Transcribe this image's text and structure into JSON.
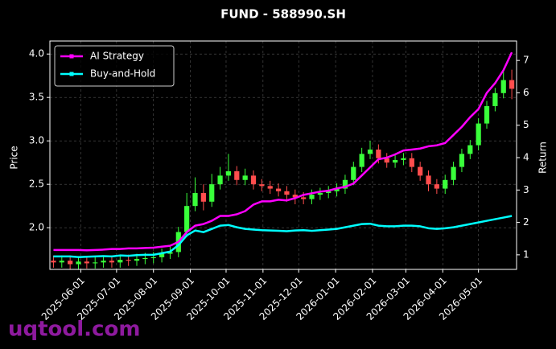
{
  "chart_data": {
    "type": "candlestick",
    "title": "FUND - 588990.SH",
    "ylabel": "Price",
    "y2label": "Return",
    "watermark": "uqtool.com",
    "grid": true,
    "legend": "upper left",
    "x": [
      "2025-05-09",
      "2025-05-16",
      "2025-05-23",
      "2025-05-30",
      "2025-06-06",
      "2025-06-13",
      "2025-06-20",
      "2025-06-27",
      "2025-07-04",
      "2025-07-11",
      "2025-07-18",
      "2025-07-25",
      "2025-08-01",
      "2025-08-08",
      "2025-08-15",
      "2025-08-22",
      "2025-08-29",
      "2025-09-05",
      "2025-09-12",
      "2025-09-19",
      "2025-09-26",
      "2025-10-03",
      "2025-10-10",
      "2025-10-17",
      "2025-10-24",
      "2025-10-31",
      "2025-11-07",
      "2025-11-14",
      "2025-11-21",
      "2025-11-28",
      "2025-12-05",
      "2025-12-12",
      "2025-12-19",
      "2025-12-26",
      "2026-01-02",
      "2026-01-09",
      "2026-01-16",
      "2026-01-23",
      "2026-01-30",
      "2026-02-06",
      "2026-02-13",
      "2026-02-20",
      "2026-02-27",
      "2026-03-06",
      "2026-03-13",
      "2026-03-20",
      "2026-03-27",
      "2026-04-03",
      "2026-04-10",
      "2026-04-17",
      "2026-04-24",
      "2026-05-01",
      "2026-05-08",
      "2026-05-15",
      "2026-05-22",
      "2026-05-29"
    ],
    "up_color": "#39ff3a",
    "down_color": "#ff4d4d",
    "open": [
      1.62,
      1.6,
      1.62,
      1.58,
      1.61,
      1.59,
      1.6,
      1.62,
      1.6,
      1.63,
      1.62,
      1.64,
      1.65,
      1.66,
      1.7,
      1.72,
      1.95,
      2.25,
      2.4,
      2.3,
      2.5,
      2.6,
      2.65,
      2.55,
      2.6,
      2.5,
      2.48,
      2.45,
      2.42,
      2.38,
      2.35,
      2.33,
      2.38,
      2.4,
      2.42,
      2.45,
      2.55,
      2.7,
      2.85,
      2.9,
      2.8,
      2.75,
      2.78,
      2.8,
      2.7,
      2.6,
      2.5,
      2.45,
      2.55,
      2.7,
      2.85,
      2.95,
      3.2,
      3.4,
      3.55,
      3.7
    ],
    "high": [
      1.68,
      1.68,
      1.68,
      1.67,
      1.67,
      1.66,
      1.68,
      1.68,
      1.69,
      1.69,
      1.7,
      1.71,
      1.72,
      1.76,
      1.78,
      2.01,
      2.4,
      2.58,
      2.5,
      2.62,
      2.7,
      2.85,
      2.71,
      2.68,
      2.66,
      2.56,
      2.54,
      2.51,
      2.48,
      2.44,
      2.41,
      2.44,
      2.46,
      2.48,
      2.51,
      2.61,
      2.76,
      2.92,
      3.0,
      2.96,
      2.86,
      2.84,
      2.86,
      2.86,
      2.76,
      2.66,
      2.56,
      2.61,
      2.76,
      2.91,
      3.01,
      3.26,
      3.46,
      3.61,
      3.8,
      3.82
    ],
    "low": [
      1.54,
      1.54,
      1.52,
      1.52,
      1.53,
      1.53,
      1.54,
      1.54,
      1.54,
      1.56,
      1.56,
      1.58,
      1.59,
      1.6,
      1.64,
      1.66,
      1.89,
      2.19,
      2.2,
      2.24,
      2.44,
      2.54,
      2.49,
      2.49,
      2.44,
      2.42,
      2.39,
      2.36,
      2.3,
      2.27,
      2.27,
      2.27,
      2.32,
      2.34,
      2.36,
      2.39,
      2.49,
      2.64,
      2.79,
      2.74,
      2.69,
      2.69,
      2.72,
      2.64,
      2.54,
      2.42,
      2.39,
      2.39,
      2.49,
      2.64,
      2.79,
      2.89,
      3.14,
      3.34,
      3.49,
      3.48
    ],
    "close": [
      1.6,
      1.62,
      1.58,
      1.61,
      1.59,
      1.6,
      1.62,
      1.6,
      1.63,
      1.62,
      1.64,
      1.65,
      1.66,
      1.7,
      1.72,
      1.95,
      2.25,
      2.4,
      2.3,
      2.5,
      2.6,
      2.65,
      2.55,
      2.6,
      2.5,
      2.48,
      2.45,
      2.42,
      2.38,
      2.35,
      2.33,
      2.38,
      2.4,
      2.42,
      2.45,
      2.55,
      2.7,
      2.85,
      2.9,
      2.8,
      2.75,
      2.78,
      2.8,
      2.7,
      2.6,
      2.5,
      2.45,
      2.55,
      2.7,
      2.85,
      2.95,
      3.2,
      3.4,
      3.55,
      3.7,
      3.6
    ],
    "series": [
      {
        "name": "AI Strategy",
        "color": "#ff00ff",
        "axis": "y2",
        "values": [
          1.15,
          1.15,
          1.15,
          1.15,
          1.14,
          1.15,
          1.16,
          1.18,
          1.18,
          1.2,
          1.2,
          1.21,
          1.22,
          1.25,
          1.28,
          1.4,
          1.7,
          1.9,
          1.95,
          2.05,
          2.2,
          2.2,
          2.25,
          2.35,
          2.55,
          2.65,
          2.65,
          2.7,
          2.68,
          2.75,
          2.85,
          2.9,
          2.95,
          2.98,
          3.05,
          3.1,
          3.2,
          3.45,
          3.7,
          3.95,
          4.0,
          4.1,
          4.22,
          4.25,
          4.28,
          4.35,
          4.38,
          4.45,
          4.7,
          4.95,
          5.25,
          5.5,
          6.0,
          6.3,
          6.7,
          7.25
        ]
      },
      {
        "name": "Buy-and-Hold",
        "color": "#00ffff",
        "axis": "y2",
        "values": [
          0.95,
          0.95,
          0.95,
          0.93,
          0.94,
          0.95,
          0.96,
          0.95,
          0.98,
          0.97,
          0.99,
          1.0,
          1.0,
          1.05,
          1.1,
          1.3,
          1.6,
          1.75,
          1.7,
          1.8,
          1.9,
          1.92,
          1.85,
          1.8,
          1.78,
          1.76,
          1.75,
          1.74,
          1.73,
          1.75,
          1.76,
          1.74,
          1.76,
          1.78,
          1.8,
          1.85,
          1.9,
          1.95,
          1.96,
          1.9,
          1.88,
          1.88,
          1.9,
          1.9,
          1.88,
          1.82,
          1.8,
          1.82,
          1.85,
          1.9,
          1.95,
          2.0,
          2.05,
          2.1,
          2.15,
          2.2
        ]
      }
    ],
    "xlim": [
      "2025-05-06",
      "2026-06-02"
    ],
    "xticks": [
      "2025-06-01",
      "2025-07-01",
      "2025-08-01",
      "2025-09-01",
      "2025-10-01",
      "2025-11-01",
      "2025-12-01",
      "2026-01-01",
      "2026-02-01",
      "2026-03-01",
      "2026-04-01",
      "2026-05-01"
    ],
    "ylim": [
      1.52,
      4.15
    ],
    "yticks": [
      {
        "value": 2,
        "label": "2.0"
      },
      {
        "value": 2.5,
        "label": "2.5"
      },
      {
        "value": 3,
        "label": "3.0"
      },
      {
        "value": 3.5,
        "label": "3.5"
      },
      {
        "value": 4,
        "label": "4.0"
      }
    ],
    "y2lim": [
      0.55,
      7.6
    ],
    "y2ticks": [
      1,
      2,
      3,
      4,
      5,
      6,
      7
    ]
  }
}
